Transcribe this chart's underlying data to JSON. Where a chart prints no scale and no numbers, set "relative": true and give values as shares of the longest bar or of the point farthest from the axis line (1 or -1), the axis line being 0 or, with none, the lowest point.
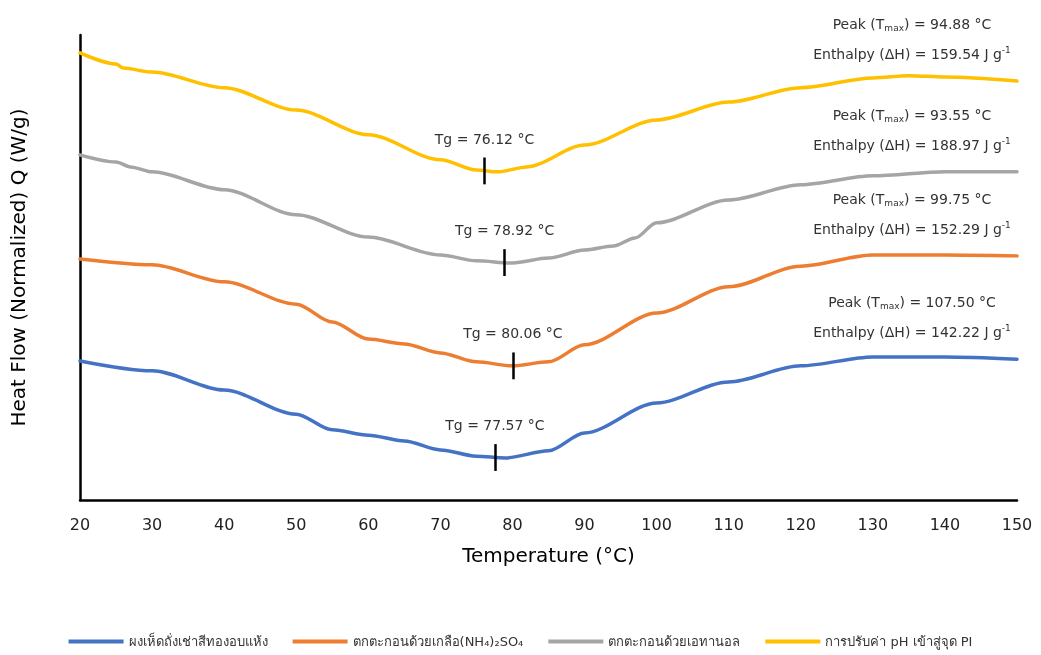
{
  "chart_data": {
    "type": "line",
    "relative": true,
    "xlabel": "Temperature (°C)",
    "ylabel": "Heat Flow (Normalized) Q (W/g)",
    "xlim": [
      20,
      150
    ],
    "xticks": [
      20,
      30,
      40,
      50,
      60,
      70,
      80,
      90,
      100,
      110,
      120,
      130,
      140,
      150
    ],
    "marker": "none",
    "legend": "bottom",
    "grid": false,
    "series": [
      {
        "name": "ผงเห็ดถั่งเช่าสีทองอบแห้ง",
        "color": "#4472c4",
        "x": [
          20,
          30,
          40,
          50,
          55,
          60,
          65,
          70,
          75,
          79,
          85,
          90,
          100,
          110,
          120,
          130,
          140,
          150
        ],
        "values": [
          0.311,
          0.289,
          0.246,
          0.192,
          0.157,
          0.145,
          0.132,
          0.112,
          0.098,
          0.094,
          0.11,
          0.15,
          0.217,
          0.264,
          0.3,
          0.32,
          0.32,
          0.315
        ]
      },
      {
        "name": "ตกตะกอนด้วยเกลือ(NH₄)₂SO₄",
        "color": "#ed7d31",
        "x": [
          20,
          30,
          40,
          50,
          55,
          60,
          65,
          70,
          75,
          80,
          85,
          90,
          100,
          110,
          120,
          130,
          140,
          150
        ],
        "values": [
          0.539,
          0.526,
          0.488,
          0.438,
          0.398,
          0.36,
          0.349,
          0.329,
          0.309,
          0.3,
          0.309,
          0.347,
          0.418,
          0.477,
          0.523,
          0.548,
          0.548,
          0.546
        ]
      },
      {
        "name": "ตกตะกอนด้วยเอทานอล",
        "color": "#a5a5a5",
        "x": [
          20,
          25,
          27,
          30,
          40,
          50,
          60,
          70,
          75,
          80,
          85,
          90,
          94,
          97,
          100,
          110,
          120,
          130,
          140,
          150
        ],
        "values": [
          0.772,
          0.756,
          0.745,
          0.734,
          0.694,
          0.638,
          0.588,
          0.548,
          0.535,
          0.53,
          0.541,
          0.559,
          0.568,
          0.586,
          0.62,
          0.671,
          0.705,
          0.725,
          0.734,
          0.734
        ]
      },
      {
        "name": "การปรับค่า pH เข้าสู่จุด PI",
        "color": "#ffc000",
        "x": [
          20,
          25,
          26,
          30,
          40,
          50,
          60,
          70,
          75,
          78,
          82,
          90,
          100,
          110,
          120,
          130,
          135,
          140,
          150
        ],
        "values": [
          1.0,
          0.975,
          0.966,
          0.957,
          0.922,
          0.872,
          0.817,
          0.761,
          0.738,
          0.734,
          0.745,
          0.794,
          0.85,
          0.89,
          0.922,
          0.944,
          0.949,
          0.946,
          0.937
        ]
      }
    ],
    "annotations": [
      {
        "text": "Tg = 77.57 °C",
        "x": 77.57,
        "y": 0.095
      },
      {
        "text": "Tg = 80.06 °C",
        "x": 80.06,
        "y": 0.3
      },
      {
        "text": "Tg = 78.92 °C",
        "x": 78.92,
        "y": 0.531
      },
      {
        "text": "Tg = 76.12 °C",
        "x": 76.12,
        "y": 0.736
      },
      "Peak (T$_{max}$) = 94.88 °C",
      "Enthalpy (ΔH) = 159.54 J g$^{-1}$",
      "Peak (T$_{max}$) = 93.55 °C",
      "Enthalpy (ΔH) = 188.97 J g$^{-1}$",
      "Peak (T$_{max}$) = 99.75 °C",
      "Enthalpy (ΔH) = 152.29 J g$^{-1}$",
      "Peak (T$_{max}$) = 107.50 °C",
      "Enthalpy (ΔH) = 142.22 J g$^{-1}$"
    ]
  }
}
